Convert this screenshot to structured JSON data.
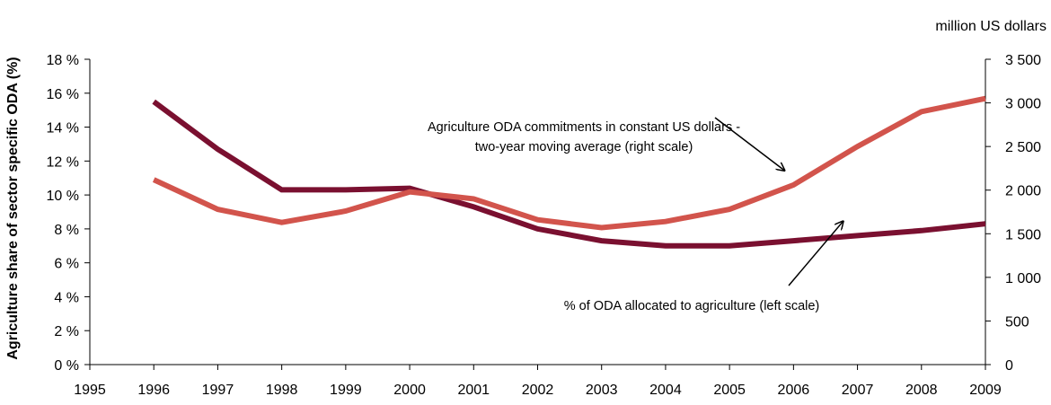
{
  "chart_data": {
    "type": "line",
    "x": [
      "1995",
      "1996",
      "1997",
      "1998",
      "1999",
      "2000",
      "2001",
      "2002",
      "2003",
      "2004",
      "2005",
      "2006",
      "2007",
      "2008",
      "2009"
    ],
    "ylabel": "Agriculture share of sector specific ODA (%)",
    "y2_unit": "million US dollars",
    "ylim": [
      0,
      18
    ],
    "y2lim": [
      0,
      3500
    ],
    "y_ticks": [
      "0 %",
      "2 %",
      "4 %",
      "6 %",
      "8 %",
      "10 %",
      "12 %",
      "14 %",
      "16 %",
      "18 %"
    ],
    "y2_ticks": [
      "0",
      "500",
      "1 000",
      "1 500",
      "2 000",
      "2 500",
      "3 000",
      "3 500"
    ],
    "grid": false,
    "series": [
      {
        "name": "% of ODA allocated to agriculture (left scale)",
        "axis": "left",
        "color": "#7a1030",
        "x": [
          "1996",
          "1997",
          "1998",
          "1999",
          "2000",
          "2001",
          "2002",
          "2003",
          "2004",
          "2005",
          "2006",
          "2007",
          "2008",
          "2009"
        ],
        "values": [
          15.5,
          12.7,
          10.3,
          10.3,
          10.4,
          9.3,
          8.0,
          7.3,
          7.0,
          7.0,
          7.3,
          7.6,
          7.9,
          8.3
        ]
      },
      {
        "name": "Agriculture ODA commitments in constant US dollars - two-year moving average (right scale)",
        "axis": "right",
        "color": "#d2544c",
        "x": [
          "1996",
          "1997",
          "1998",
          "1999",
          "2000",
          "2001",
          "2002",
          "2003",
          "2004",
          "2005",
          "2006",
          "2007",
          "2008",
          "2009"
        ],
        "values": [
          2120,
          1780,
          1630,
          1760,
          1980,
          1900,
          1660,
          1570,
          1640,
          1780,
          2060,
          2500,
          2900,
          3050
        ]
      }
    ],
    "annotations": [
      {
        "lines": [
          "Agriculture ODA commitments in constant US dollars -",
          "two-year moving average (right scale)"
        ],
        "target_series": 1,
        "target_x": "2006"
      },
      {
        "lines": [
          "% of ODA allocated to agriculture (left scale)"
        ],
        "target_series": 0,
        "target_x": "2007"
      }
    ]
  }
}
